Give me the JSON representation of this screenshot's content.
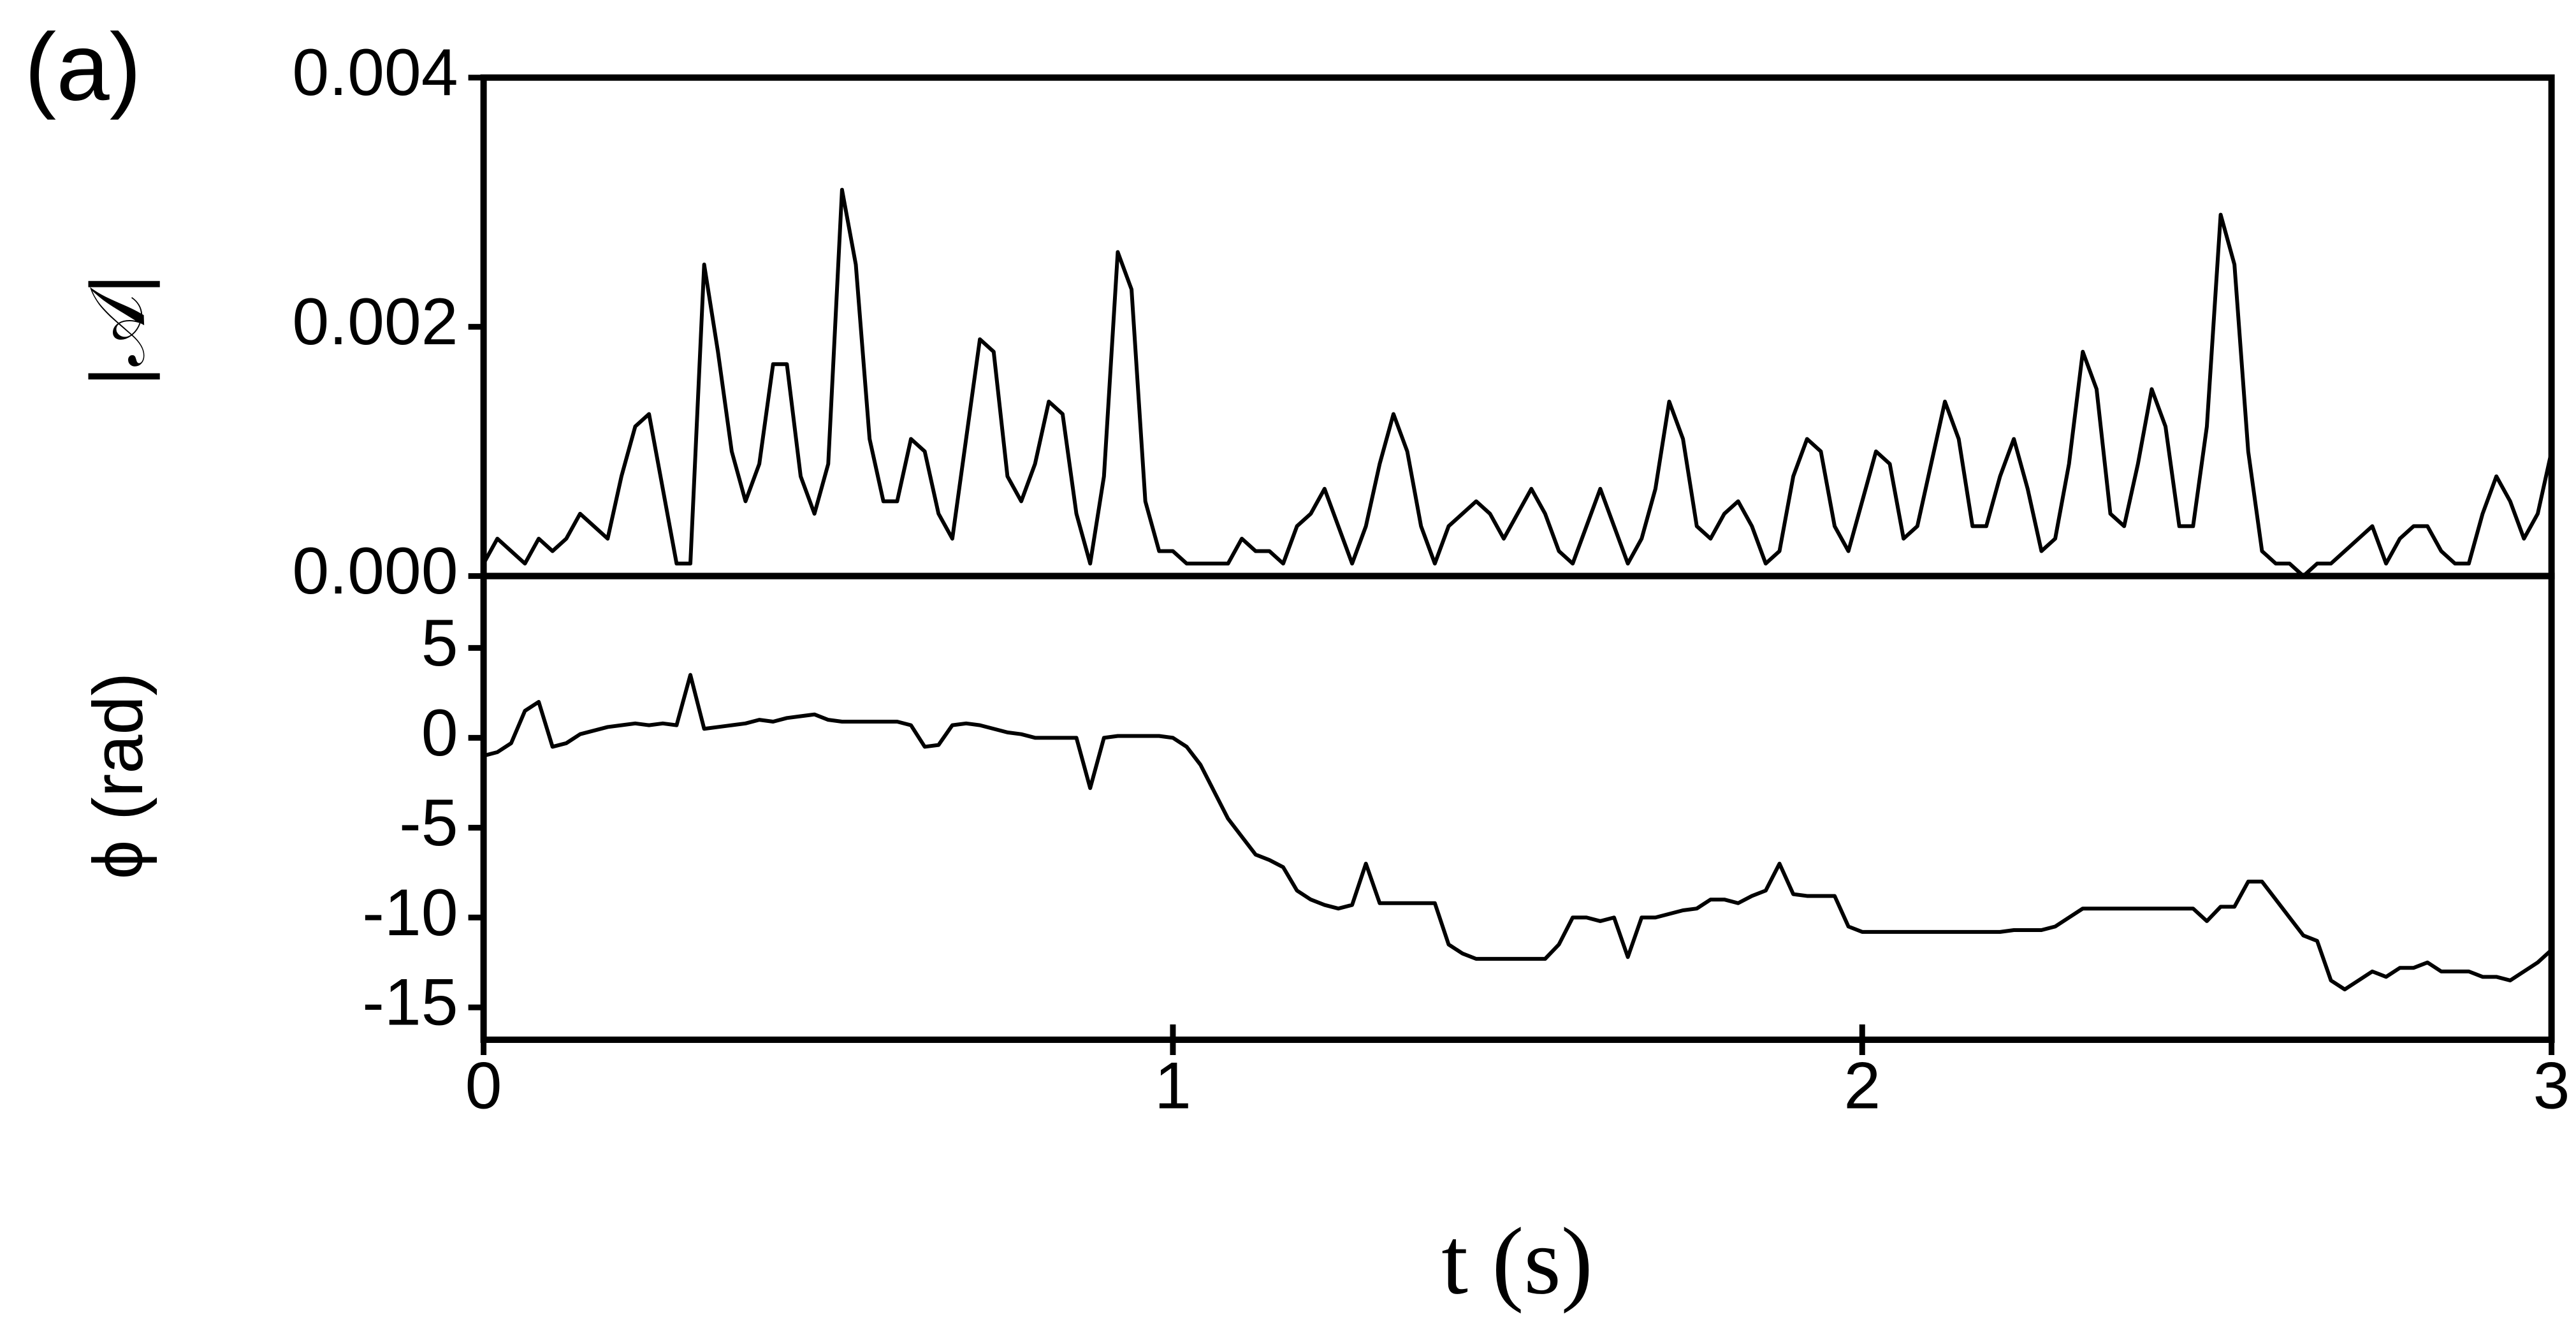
{
  "chart_data": [
    {
      "type": "line",
      "panel_label": "(a)",
      "y_label": "|𝒜|",
      "xlim": [
        0,
        3
      ],
      "ylim": [
        0,
        0.004
      ],
      "yticks": [
        {
          "value": 0,
          "label": "0.000"
        },
        {
          "value": 0.002,
          "label": "0.002"
        },
        {
          "value": 0.004,
          "label": "0.004"
        }
      ],
      "x": [
        0,
        0.02,
        0.04,
        0.06,
        0.08,
        0.1,
        0.12,
        0.14,
        0.16,
        0.18,
        0.2,
        0.22,
        0.24,
        0.26,
        0.28,
        0.3,
        0.32,
        0.34,
        0.36,
        0.38,
        0.4,
        0.42,
        0.44,
        0.46,
        0.48,
        0.5,
        0.52,
        0.54,
        0.56,
        0.58,
        0.6,
        0.62,
        0.64,
        0.66,
        0.68,
        0.7,
        0.72,
        0.74,
        0.76,
        0.78,
        0.8,
        0.82,
        0.84,
        0.86,
        0.88,
        0.9,
        0.92,
        0.94,
        0.96,
        0.98,
        1,
        1.02,
        1.04,
        1.06,
        1.08,
        1.1,
        1.12,
        1.14,
        1.16,
        1.18,
        1.2,
        1.22,
        1.24,
        1.26,
        1.28,
        1.3,
        1.32,
        1.34,
        1.36,
        1.38,
        1.4,
        1.42,
        1.44,
        1.46,
        1.48,
        1.5,
        1.52,
        1.54,
        1.56,
        1.58,
        1.6,
        1.62,
        1.64,
        1.66,
        1.68,
        1.7,
        1.72,
        1.74,
        1.76,
        1.78,
        1.8,
        1.82,
        1.84,
        1.86,
        1.88,
        1.9,
        1.92,
        1.94,
        1.96,
        1.98,
        2,
        2.02,
        2.04,
        2.06,
        2.08,
        2.1,
        2.12,
        2.14,
        2.16,
        2.18,
        2.2,
        2.22,
        2.24,
        2.26,
        2.28,
        2.3,
        2.32,
        2.34,
        2.36,
        2.38,
        2.4,
        2.42,
        2.44,
        2.46,
        2.48,
        2.5,
        2.52,
        2.54,
        2.56,
        2.58,
        2.6,
        2.62,
        2.64,
        2.66,
        2.68,
        2.7,
        2.72,
        2.74,
        2.76,
        2.78,
        2.8,
        2.82,
        2.84,
        2.86,
        2.88,
        2.9,
        2.92,
        2.94,
        2.96,
        2.98,
        3
      ],
      "series": [
        {
          "color": "#000000",
          "values": [
            0.0001,
            0.0003,
            0.0002,
            0.0001,
            0.0003,
            0.0002,
            0.0003,
            0.0005,
            0.0004,
            0.0003,
            0.0008,
            0.0012,
            0.0013,
            0.0007,
            0.0001,
            0.0001,
            0.0025,
            0.0018,
            0.001,
            0.0006,
            0.0009,
            0.0017,
            0.0017,
            0.0008,
            0.0005,
            0.0009,
            0.0031,
            0.0025,
            0.0011,
            0.0006,
            0.0006,
            0.0011,
            0.001,
            0.0005,
            0.0003,
            0.0011,
            0.0019,
            0.0018,
            0.0008,
            0.0006,
            0.0009,
            0.0014,
            0.0013,
            0.0005,
            0.0001,
            0.0008,
            0.0026,
            0.0023,
            0.0006,
            0.0002,
            0.0002,
            0.0001,
            0.0001,
            0.0001,
            0.0001,
            0.0003,
            0.0002,
            0.0002,
            0.0001,
            0.0004,
            0.0005,
            0.0007,
            0.0004,
            0.0001,
            0.0004,
            0.0009,
            0.0013,
            0.001,
            0.0004,
            0.0001,
            0.0004,
            0.0005,
            0.0006,
            0.0005,
            0.0003,
            0.0005,
            0.0007,
            0.0005,
            0.0002,
            0.0001,
            0.0004,
            0.0007,
            0.0004,
            0.0001,
            0.0003,
            0.0007,
            0.0014,
            0.0011,
            0.0004,
            0.0003,
            0.0005,
            0.0006,
            0.0004,
            0.0001,
            0.0002,
            0.0008,
            0.0011,
            0.001,
            0.0004,
            0.0002,
            0.0006,
            0.001,
            0.0009,
            0.0003,
            0.0004,
            0.0009,
            0.0014,
            0.0011,
            0.0004,
            0.0004,
            0.0008,
            0.0011,
            0.0007,
            0.0002,
            0.0003,
            0.0009,
            0.0018,
            0.0015,
            0.0005,
            0.0004,
            0.0009,
            0.0015,
            0.0012,
            0.0004,
            0.0004,
            0.0012,
            0.0029,
            0.0025,
            0.001,
            0.0002,
            0.0001,
            0.0001,
            0,
            0.0001,
            0.0001,
            0.0002,
            0.0003,
            0.0004,
            0.0001,
            0.0003,
            0.0004,
            0.0004,
            0.0002,
            0.0001,
            0.0001,
            0.0005,
            0.0008,
            0.0006,
            0.0003,
            0.0005,
            0.001
          ]
        }
      ]
    },
    {
      "type": "line",
      "y_label": "ϕ (rad)",
      "x_label": "t (s)",
      "xlim": [
        0,
        3
      ],
      "ylim": [
        -16.8,
        9
      ],
      "xticks": [
        0,
        1,
        2,
        3
      ],
      "yticks": [
        5,
        0,
        -5,
        -10,
        -15
      ],
      "x": [
        0,
        0.02,
        0.04,
        0.06,
        0.08,
        0.1,
        0.12,
        0.14,
        0.16,
        0.18,
        0.2,
        0.22,
        0.24,
        0.26,
        0.28,
        0.3,
        0.32,
        0.34,
        0.36,
        0.38,
        0.4,
        0.42,
        0.44,
        0.46,
        0.48,
        0.5,
        0.52,
        0.54,
        0.56,
        0.58,
        0.6,
        0.62,
        0.64,
        0.66,
        0.68,
        0.7,
        0.72,
        0.74,
        0.76,
        0.78,
        0.8,
        0.82,
        0.84,
        0.86,
        0.88,
        0.9,
        0.92,
        0.94,
        0.96,
        0.98,
        1,
        1.02,
        1.04,
        1.06,
        1.08,
        1.1,
        1.12,
        1.14,
        1.16,
        1.18,
        1.2,
        1.22,
        1.24,
        1.26,
        1.28,
        1.3,
        1.32,
        1.34,
        1.36,
        1.38,
        1.4,
        1.42,
        1.44,
        1.46,
        1.48,
        1.5,
        1.52,
        1.54,
        1.56,
        1.58,
        1.6,
        1.62,
        1.64,
        1.66,
        1.68,
        1.7,
        1.72,
        1.74,
        1.76,
        1.78,
        1.8,
        1.82,
        1.84,
        1.86,
        1.88,
        1.9,
        1.92,
        1.94,
        1.96,
        1.98,
        2,
        2.02,
        2.04,
        2.06,
        2.08,
        2.1,
        2.12,
        2.14,
        2.16,
        2.18,
        2.2,
        2.22,
        2.24,
        2.26,
        2.28,
        2.3,
        2.32,
        2.34,
        2.36,
        2.38,
        2.4,
        2.42,
        2.44,
        2.46,
        2.48,
        2.5,
        2.52,
        2.54,
        2.56,
        2.58,
        2.6,
        2.62,
        2.64,
        2.66,
        2.68,
        2.7,
        2.72,
        2.74,
        2.76,
        2.78,
        2.8,
        2.82,
        2.84,
        2.86,
        2.88,
        2.9,
        2.92,
        2.94,
        2.96,
        2.98,
        3
      ],
      "series": [
        {
          "color": "#000000",
          "values": [
            -1,
            -0.8,
            -0.3,
            1.5,
            2,
            -0.5,
            -0.3,
            0.2,
            0.4,
            0.6,
            0.7,
            0.8,
            0.7,
            0.8,
            0.7,
            3.5,
            0.5,
            0.6,
            0.7,
            0.8,
            1,
            0.9,
            1.1,
            1.2,
            1.3,
            1,
            0.9,
            0.9,
            0.9,
            0.9,
            0.9,
            0.7,
            -0.5,
            -0.4,
            0.7,
            0.8,
            0.7,
            0.5,
            0.3,
            0.2,
            0,
            0,
            0,
            0,
            -2.8,
            0,
            0.1,
            0.1,
            0.1,
            0.1,
            0,
            -0.5,
            -1.5,
            -3,
            -4.5,
            -5.5,
            -6.5,
            -6.8,
            -7.2,
            -8.5,
            -9,
            -9.3,
            -9.5,
            -9.3,
            -7,
            -9.2,
            -9.2,
            -9.2,
            -9.2,
            -9.2,
            -11.5,
            -12,
            -12.3,
            -12.3,
            -12.3,
            -12.3,
            -12.3,
            -12.3,
            -11.5,
            -10,
            -10,
            -10.2,
            -10,
            -12.2,
            -10,
            -10,
            -9.8,
            -9.6,
            -9.5,
            -9,
            -9,
            -9.2,
            -8.8,
            -8.5,
            -7,
            -8.7,
            -8.8,
            -8.8,
            -8.8,
            -10.5,
            -10.8,
            -10.8,
            -10.8,
            -10.8,
            -10.8,
            -10.8,
            -10.8,
            -10.8,
            -10.8,
            -10.8,
            -10.8,
            -10.7,
            -10.7,
            -10.7,
            -10.5,
            -10,
            -9.5,
            -9.5,
            -9.5,
            -9.5,
            -9.5,
            -9.5,
            -9.5,
            -9.5,
            -9.5,
            -10.2,
            -9.4,
            -9.4,
            -8,
            -8,
            -9,
            -10,
            -11,
            -11.3,
            -13.5,
            -14,
            -13.5,
            -13,
            -13.3,
            -12.8,
            -12.8,
            -12.5,
            -13,
            -13,
            -13,
            -13.3,
            -13.3,
            -13.5,
            -13,
            -12.5,
            -11.8
          ]
        }
      ]
    }
  ]
}
